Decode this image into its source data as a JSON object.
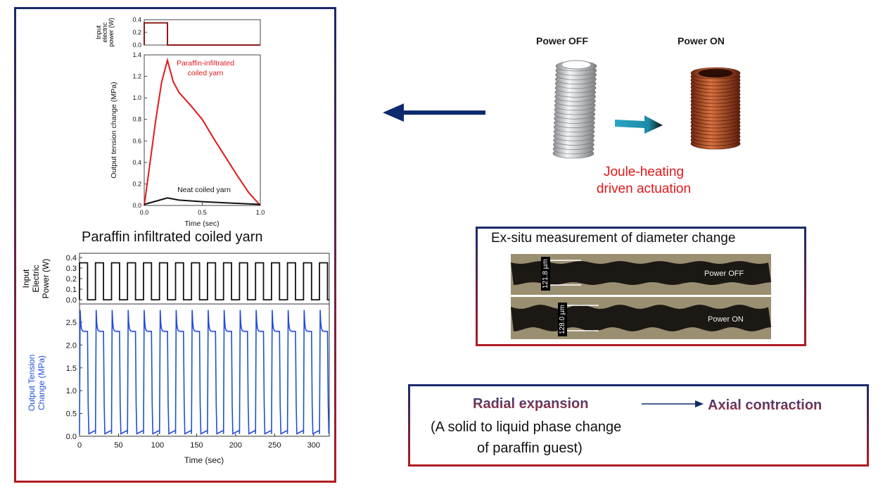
{
  "top_chart": {
    "input_ylabel": [
      "Input",
      "electric",
      "power (W)"
    ],
    "input_yticks": [
      "0.4",
      "0.2",
      "0.0"
    ],
    "ylabel": "Output tension change (MPa)",
    "xlabel": "Time (sec)",
    "yticks": [
      "0.0",
      "0.2",
      "0.4",
      "0.6",
      "0.8",
      "1.0",
      "1.2",
      "1.4"
    ],
    "xticks": [
      "0.0",
      "0.5",
      "1.0"
    ],
    "label_paraffin": [
      "Paraffin-infiltrated",
      "coiled yarn"
    ],
    "label_neat": "Neat coiled yarn",
    "colors": {
      "paraffin": "#e0191b",
      "neat": "#111111",
      "input": "#8b1a1a"
    }
  },
  "chart_data": [
    {
      "type": "line",
      "xlim": [
        0,
        1.0
      ],
      "ylim": [
        0,
        0.4
      ],
      "series": [
        {
          "x": [
            0,
            0,
            0.2,
            0.2,
            1.0
          ],
          "y": [
            0,
            0.35,
            0.35,
            0.0,
            0.0
          ]
        }
      ]
    },
    {
      "type": "line",
      "xlabel": "Time (sec)",
      "ylabel": "Output tension change (MPa)",
      "xlim": [
        0,
        1.0
      ],
      "ylim": [
        0,
        1.4
      ],
      "series": [
        {
          "name": "Paraffin-infiltrated coiled yarn",
          "x": [
            0,
            0.05,
            0.1,
            0.15,
            0.2,
            0.25,
            0.3,
            0.4,
            0.5,
            0.6,
            0.7,
            0.8,
            0.9,
            1.0
          ],
          "y": [
            0,
            0.4,
            0.8,
            1.15,
            1.35,
            1.15,
            1.05,
            0.93,
            0.8,
            0.62,
            0.45,
            0.28,
            0.12,
            0.0
          ]
        },
        {
          "name": "Neat coiled yarn",
          "x": [
            0,
            0.1,
            0.2,
            0.3,
            0.5,
            0.7,
            0.9,
            1.0
          ],
          "y": [
            0.01,
            0.04,
            0.07,
            0.05,
            0.035,
            0.025,
            0.015,
            0.01
          ]
        }
      ]
    },
    {
      "type": "line",
      "xlabel": "Time (sec)",
      "xlim": [
        0,
        320
      ],
      "ylim": [
        0,
        0.4
      ],
      "period": 20.5,
      "on_fraction": 0.5,
      "power_on": 0.35
    },
    {
      "type": "line",
      "xlim": [
        0,
        320
      ],
      "ylim": [
        0,
        2.9
      ],
      "peak": 2.8,
      "plateau": 2.3,
      "baseline": 0.05
    }
  ],
  "bottom_chart": {
    "title": "Paraffin infiltrated coiled yarn",
    "input_ylabel": [
      "Input",
      "Electric",
      "Power (W)"
    ],
    "input_yticks": [
      "0.4",
      "0.3",
      "0.2",
      "0.1",
      "0.0"
    ],
    "ylabel": [
      "Output Tension",
      "Change (MPa)"
    ],
    "yticks": [
      "0.0",
      "0.5",
      "1.0",
      "1.5",
      "2.0",
      "2.5"
    ],
    "xticks": [
      "0",
      "50",
      "100",
      "150",
      "200",
      "250",
      "300"
    ],
    "xlabel": "Time (sec)",
    "colors": {
      "tension": "#1f4fd8",
      "input": "#111111"
    }
  },
  "coils": {
    "off_label": "Power OFF",
    "on_label": "Power ON",
    "caption": [
      "Joule-heating",
      "driven actuation"
    ],
    "colors": {
      "off": "#cfd2d4",
      "on": "#b04a22",
      "arrow": "#2aa6c4"
    }
  },
  "exsitu": {
    "title": "Ex-situ measurement of diameter change",
    "off_label": "Power OFF",
    "on_label": "Power ON",
    "off_scale": "121.8 µm",
    "on_scale": "128.0 µm"
  },
  "summary": {
    "radial": "Radial expansion",
    "axial": "Axial contraction",
    "phase": [
      "(A solid to liquid phase change",
      "of paraffin guest)"
    ]
  },
  "colors": {
    "arrow": "#0e2a6e",
    "frame_top": "#1a2a6c",
    "frame_bottom": "#b01c22"
  }
}
